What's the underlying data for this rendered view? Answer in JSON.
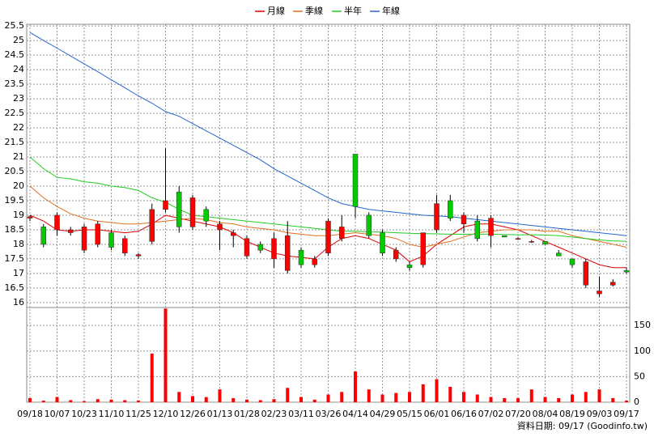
{
  "chart_data": {
    "type": "candlestick",
    "legend": "top",
    "grid": true,
    "source": "資料日期: 09/17 (Goodinfo.tw)",
    "categories": [
      "09/18",
      null,
      "10/07",
      null,
      "10/23",
      null,
      "11/10",
      null,
      "11/25",
      null,
      "12/10",
      null,
      "12/26",
      null,
      "01/13",
      null,
      "01/28",
      null,
      "02/23",
      null,
      "03/11",
      null,
      "03/26",
      null,
      "04/14",
      null,
      "04/29",
      null,
      "05/15",
      null,
      "06/01",
      null,
      "06/16",
      null,
      "07/02",
      null,
      "07/20",
      null,
      "08/04",
      null,
      "08/19",
      null,
      "09/03",
      null,
      "09/17"
    ],
    "up_color": "#ff0000",
    "down_color": "#00cc00",
    "open": [
      18.9,
      18.6,
      18.5,
      18.4,
      17.8,
      18.0,
      18.4,
      17.7,
      17.6,
      18.1,
      19.2,
      19.8,
      18.6,
      19.2,
      18.5,
      18.3,
      17.6,
      18.0,
      17.5,
      17.1,
      17.8,
      17.3,
      17.7,
      18.2,
      21.1,
      19.0,
      18.4,
      17.5,
      17.3,
      17.3,
      18.5,
      19.5,
      18.7,
      18.8,
      18.3,
      18.3,
      18.2,
      18.1,
      18.1,
      17.7,
      17.5,
      16.6,
      16.3,
      16.6,
      17.1
    ],
    "high": [
      19.0,
      18.7,
      19.1,
      18.6,
      18.7,
      18.8,
      18.5,
      18.3,
      17.7,
      19.4,
      21.3,
      20.0,
      19.7,
      19.3,
      18.8,
      18.5,
      18.3,
      18.1,
      18.4,
      18.8,
      17.9,
      17.6,
      18.9,
      19.0,
      21.1,
      19.1,
      18.5,
      17.9,
      17.4,
      18.4,
      19.7,
      19.7,
      19.1,
      19.0,
      19.0,
      18.3,
      18.25,
      18.15,
      18.1,
      17.8,
      17.5,
      17.5,
      16.9,
      16.8,
      17.2
    ],
    "low": [
      18.8,
      17.9,
      18.3,
      18.3,
      17.7,
      17.9,
      17.8,
      17.6,
      17.5,
      18.0,
      19.1,
      18.4,
      18.5,
      18.6,
      17.8,
      17.9,
      17.5,
      17.7,
      17.2,
      17.0,
      17.2,
      17.2,
      17.6,
      18.1,
      18.9,
      18.2,
      17.6,
      17.4,
      17.1,
      17.2,
      18.4,
      18.8,
      18.4,
      18.1,
      17.9,
      18.25,
      18.15,
      18.05,
      18.0,
      17.6,
      17.2,
      16.5,
      16.2,
      16.55,
      17.0
    ],
    "close": [
      18.95,
      18.0,
      19.0,
      18.5,
      18.6,
      18.7,
      17.9,
      18.2,
      17.65,
      19.2,
      19.5,
      18.6,
      19.6,
      18.8,
      18.7,
      18.4,
      18.2,
      17.8,
      18.2,
      18.3,
      17.3,
      17.5,
      18.8,
      18.6,
      19.3,
      18.3,
      17.7,
      17.8,
      17.2,
      18.4,
      19.4,
      18.9,
      19.0,
      18.2,
      18.9,
      18.25,
      18.2,
      18.1,
      18.0,
      17.6,
      17.3,
      17.4,
      16.4,
      16.7,
      17.05
    ],
    "ylim": [
      15.83,
      25.56
    ],
    "yticks": [
      16,
      16.5,
      17,
      17.5,
      18,
      18.5,
      19,
      19.5,
      20,
      20.5,
      21,
      21.5,
      22,
      22.5,
      23,
      23.5,
      24,
      24.5,
      25,
      25.5
    ],
    "series": [
      {
        "name": "月線",
        "color": "#dd0000",
        "values": [
          19.0,
          18.8,
          18.5,
          18.45,
          18.5,
          18.5,
          18.45,
          18.4,
          18.45,
          18.7,
          19.0,
          18.9,
          18.8,
          18.7,
          18.6,
          18.4,
          18.1,
          17.9,
          17.7,
          17.6,
          17.55,
          17.5,
          17.9,
          18.2,
          18.3,
          18.2,
          18.0,
          17.8,
          17.4,
          17.6,
          18.0,
          18.3,
          18.6,
          18.7,
          18.7,
          18.6,
          18.5,
          18.3,
          18.1,
          17.9,
          17.7,
          17.5,
          17.3,
          17.2,
          17.2
        ]
      },
      {
        "name": "季線",
        "color": "#e07020",
        "values": [
          20.0,
          19.6,
          19.3,
          19.05,
          18.9,
          18.8,
          18.75,
          18.7,
          18.7,
          18.75,
          18.8,
          18.85,
          18.9,
          18.85,
          18.75,
          18.7,
          18.6,
          18.55,
          18.5,
          18.4,
          18.35,
          18.3,
          18.3,
          18.35,
          18.4,
          18.35,
          18.3,
          18.2,
          18.0,
          17.9,
          18.0,
          18.1,
          18.25,
          18.4,
          18.45,
          18.5,
          18.5,
          18.5,
          18.45,
          18.45,
          18.3,
          18.2,
          18.1,
          18.0,
          17.9
        ]
      },
      {
        "name": "半年",
        "color": "#22cc22",
        "values": [
          21.0,
          20.6,
          20.3,
          20.25,
          20.15,
          20.1,
          20.0,
          19.95,
          19.85,
          19.6,
          19.45,
          19.2,
          19.0,
          18.95,
          18.9,
          18.85,
          18.8,
          18.75,
          18.7,
          18.65,
          18.6,
          18.55,
          18.5,
          18.45,
          18.45,
          18.43,
          18.42,
          18.4,
          18.38,
          18.37,
          18.36,
          18.35,
          18.35,
          18.35,
          18.35,
          18.34,
          18.33,
          18.33,
          18.32,
          18.3,
          18.25,
          18.2,
          18.15,
          18.12,
          18.1
        ]
      },
      {
        "name": "年線",
        "color": "#2266cc",
        "values": [
          25.28,
          25.0,
          24.74,
          24.47,
          24.2,
          23.93,
          23.65,
          23.38,
          23.1,
          22.85,
          22.56,
          22.4,
          22.15,
          21.9,
          21.65,
          21.4,
          21.15,
          20.9,
          20.6,
          20.35,
          20.1,
          19.85,
          19.6,
          19.4,
          19.3,
          19.2,
          19.15,
          19.1,
          19.05,
          19.0,
          18.98,
          18.95,
          18.9,
          18.85,
          18.8,
          18.75,
          18.7,
          18.65,
          18.6,
          18.55,
          18.5,
          18.45,
          18.4,
          18.35,
          18.3
        ]
      }
    ],
    "volume": {
      "color": "#ff0000",
      "values": [
        8,
        3,
        10,
        4,
        2,
        6,
        5,
        4,
        3,
        95,
        183,
        20,
        12,
        10,
        25,
        8,
        5,
        4,
        6,
        28,
        10,
        5,
        15,
        20,
        60,
        25,
        15,
        18,
        20,
        35,
        45,
        30,
        20,
        15,
        10,
        8,
        8,
        25,
        10,
        8,
        15,
        20,
        25,
        8,
        3
      ],
      "ylim": [
        0,
        185
      ],
      "yticks": [
        0,
        50,
        100,
        150
      ]
    }
  }
}
